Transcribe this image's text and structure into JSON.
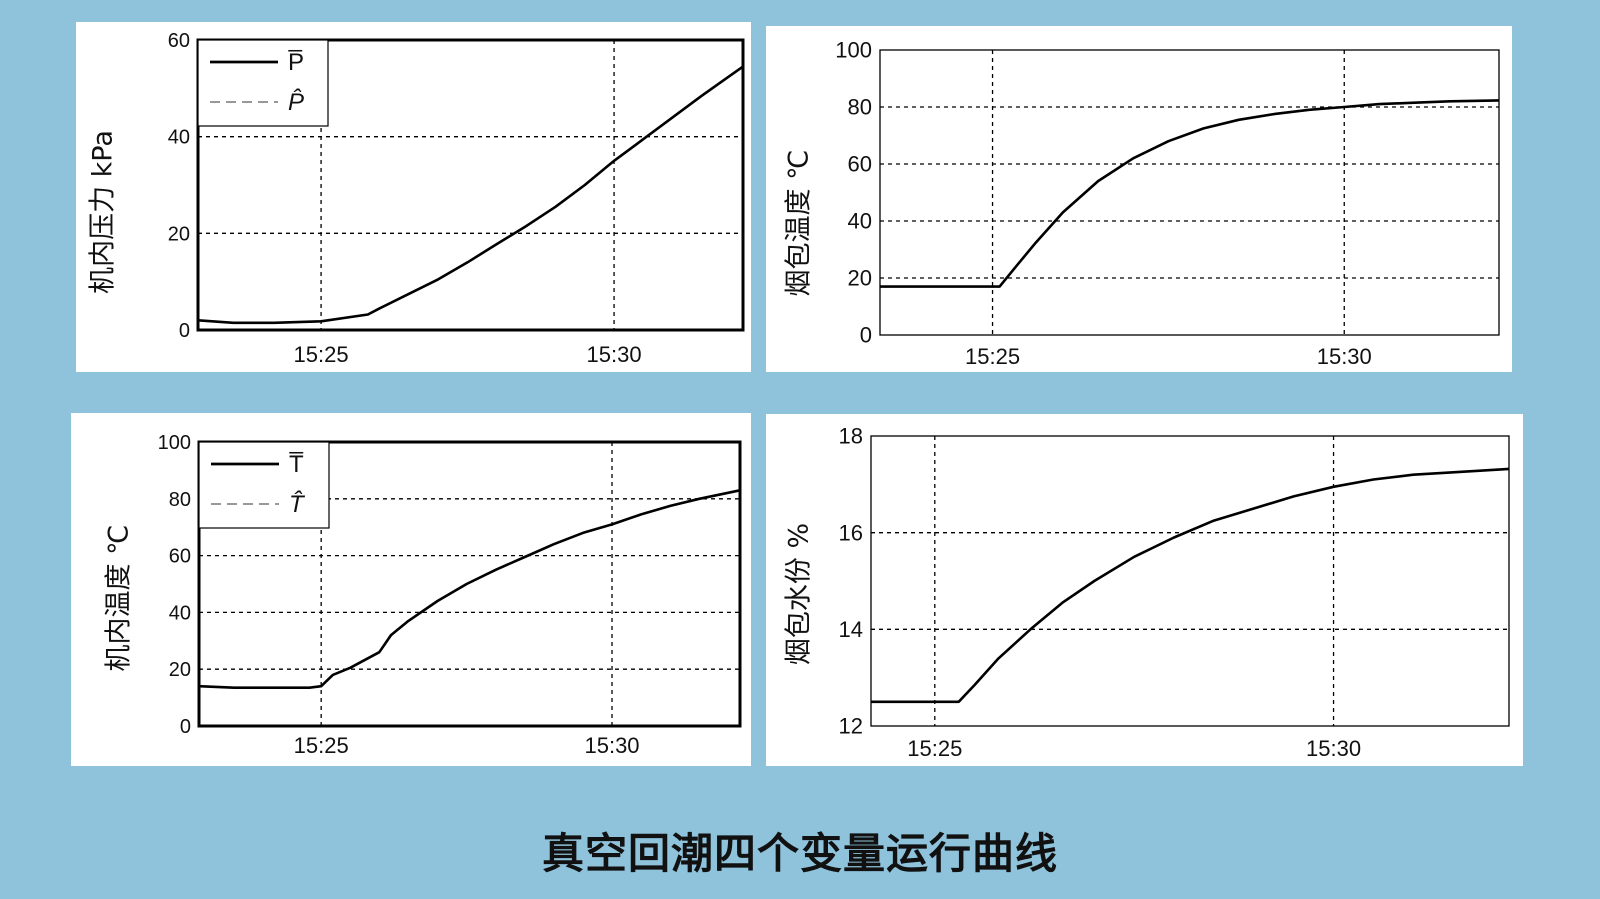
{
  "caption": "真空回潮四个变量运行曲线",
  "colors": {
    "background": "#8fc3dc",
    "panel": "#ffffff",
    "line": "#000000",
    "grid": "#000000"
  },
  "chart_data": [
    {
      "id": "p1",
      "type": "line",
      "ylabel": "机内压力 kPa",
      "xlabel": "",
      "x_unit": "minutes",
      "x_ticks": [
        "15:25",
        "15:30"
      ],
      "xlim": [
        "15:22.9",
        "15:32.2"
      ],
      "ylim": [
        0,
        60
      ],
      "y_ticks": [
        0,
        20,
        40,
        60
      ],
      "grid": true,
      "frame": "bold",
      "legend": {
        "position": "top-left",
        "entries": [
          {
            "label": "P̅",
            "style": "solid"
          },
          {
            "label": "P̂",
            "style": "dashed"
          }
        ]
      },
      "series": [
        {
          "x": [
            "15:22.9",
            "15:23.5",
            "15:24.2",
            "15:25.0",
            "15:25.8",
            "15:26.0",
            "15:26.5",
            "15:27.0",
            "15:27.5",
            "15:28.0",
            "15:28.5",
            "15:29.0",
            "15:29.5",
            "15:30.0",
            "15:30.5",
            "15:31.0",
            "15:31.5",
            "15:32.0",
            "15:32.2"
          ],
          "y": [
            2.0,
            1.5,
            1.5,
            1.8,
            3.2,
            4.5,
            7.5,
            10.5,
            14.0,
            17.8,
            21.5,
            25.5,
            30.0,
            35.0,
            39.5,
            44.0,
            48.5,
            52.8,
            54.5
          ]
        }
      ]
    },
    {
      "id": "p2",
      "type": "line",
      "ylabel": "烟包温度 ℃",
      "xlabel": "",
      "x_unit": "minutes",
      "x_ticks": [
        "15:25",
        "15:30"
      ],
      "xlim": [
        "15:23.4",
        "15:32.2"
      ],
      "ylim": [
        0,
        100
      ],
      "y_ticks": [
        0,
        20,
        40,
        60,
        80,
        100
      ],
      "grid": true,
      "frame": "thin",
      "series": [
        {
          "x": [
            "15:23.4",
            "15:25.1",
            "15:25.3",
            "15:25.6",
            "15:26.0",
            "15:26.5",
            "15:27.0",
            "15:27.5",
            "15:28.0",
            "15:28.5",
            "15:29.0",
            "15:29.5",
            "15:30.0",
            "15:30.5",
            "15:31.0",
            "15:31.5",
            "15:32.2"
          ],
          "y": [
            17,
            17,
            23,
            32,
            43,
            54,
            62,
            68,
            72.5,
            75.5,
            77.5,
            79,
            80,
            81,
            81.5,
            82,
            82.3
          ]
        }
      ]
    },
    {
      "id": "p3",
      "type": "line",
      "ylabel": "机内温度 ℃",
      "xlabel": "",
      "x_unit": "minutes",
      "x_ticks": [
        "15:25",
        "15:30"
      ],
      "xlim": [
        "15:22.9",
        "15:32.2"
      ],
      "ylim": [
        0,
        100
      ],
      "y_ticks": [
        0,
        20,
        40,
        60,
        80,
        100
      ],
      "grid": true,
      "frame": "bold",
      "legend": {
        "position": "top-left",
        "entries": [
          {
            "label": "T̅",
            "style": "solid"
          },
          {
            "label": "T̂",
            "style": "dashed"
          }
        ]
      },
      "series": [
        {
          "x": [
            "15:22.9",
            "15:23.5",
            "15:24.2",
            "15:24.8",
            "15:25.0",
            "15:25.2",
            "15:25.5",
            "15:26.0",
            "15:26.2",
            "15:26.5",
            "15:27.0",
            "15:27.5",
            "15:28.0",
            "15:28.5",
            "15:29.0",
            "15:29.5",
            "15:30.0",
            "15:30.5",
            "15:31.0",
            "15:31.5",
            "15:32.2"
          ],
          "y": [
            14,
            13.5,
            13.5,
            13.5,
            14,
            18,
            20.5,
            26,
            32,
            37,
            44,
            50,
            55,
            59.5,
            64,
            68,
            71,
            74.5,
            77.5,
            80,
            83
          ]
        }
      ]
    },
    {
      "id": "p4",
      "type": "line",
      "ylabel": "烟包水份 %",
      "xlabel": "",
      "x_unit": "minutes",
      "x_ticks": [
        "15:25",
        "15:30"
      ],
      "xlim": [
        "15:24.2",
        "15:32.2"
      ],
      "ylim": [
        12,
        18
      ],
      "y_ticks": [
        12,
        14,
        16,
        18
      ],
      "grid": true,
      "frame": "thin",
      "series": [
        {
          "x": [
            "15:24.2",
            "15:25.3",
            "15:25.5",
            "15:25.8",
            "15:26.2",
            "15:26.6",
            "15:27.0",
            "15:27.5",
            "15:28.0",
            "15:28.5",
            "15:29.0",
            "15:29.5",
            "15:30.0",
            "15:30.5",
            "15:31.0",
            "15:31.5",
            "15:32.2"
          ],
          "y": [
            12.5,
            12.5,
            12.85,
            13.4,
            14.0,
            14.55,
            15.0,
            15.5,
            15.9,
            16.25,
            16.5,
            16.75,
            16.95,
            17.1,
            17.2,
            17.25,
            17.32
          ]
        }
      ]
    }
  ]
}
